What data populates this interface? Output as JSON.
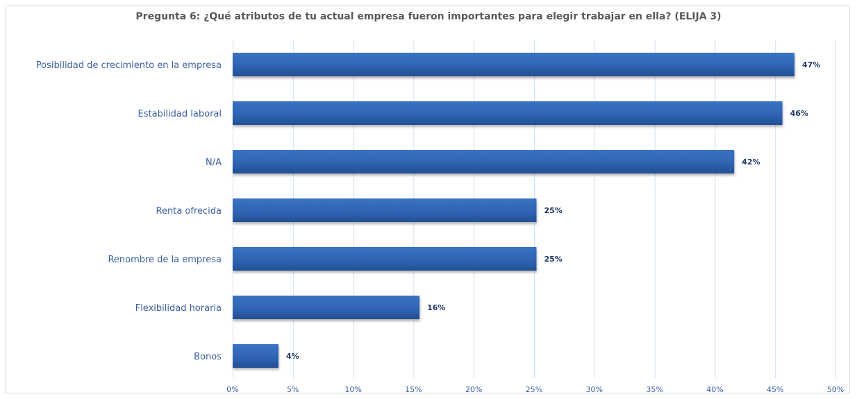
{
  "chart_data": {
    "type": "bar",
    "orientation": "horizontal",
    "title": "Pregunta 6:  ¿Qué atributos de tu actual empresa fueron importantes para elegir trabajar en ella? (ELIJA 3)",
    "categories": [
      "Posibilidad de crecimiento en la empresa",
      "Estabilidad laboral",
      "N/A",
      "Renta ofrecida",
      "Renombre de la empresa",
      "Flexibilidad horaria",
      "Bonos"
    ],
    "values": [
      47,
      46,
      42,
      25,
      25,
      16,
      4
    ],
    "value_labels": [
      "47%",
      "46%",
      "42%",
      "25%",
      "25%",
      "16%",
      "4%"
    ],
    "bar_extent": [
      46.6,
      45.6,
      41.6,
      25.2,
      25.2,
      15.5,
      3.8
    ],
    "xlim": [
      0,
      50
    ],
    "x_ticks": [
      0,
      5,
      10,
      15,
      20,
      25,
      30,
      35,
      40,
      45,
      50
    ],
    "x_tick_labels": [
      "0%",
      "5%",
      "10%",
      "15%",
      "20%",
      "25%",
      "30%",
      "35%",
      "40%",
      "45%",
      "50%"
    ],
    "xlabel": "",
    "ylabel": "",
    "grid": true,
    "legend": false,
    "colors": {
      "bar": "#2f64b3",
      "bar_dark": "#234f93",
      "grid": "#cfe0f0",
      "label": "#3b5f9c",
      "value_label": "#1f3864",
      "title": "#595959"
    }
  }
}
